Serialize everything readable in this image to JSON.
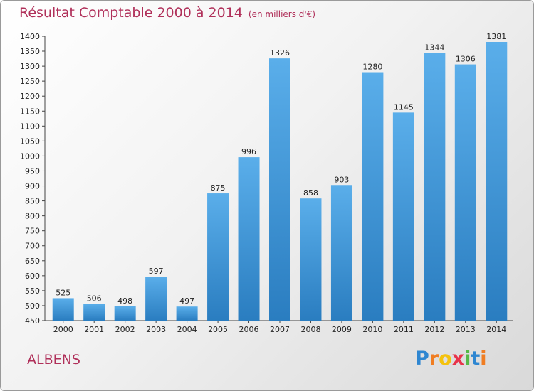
{
  "chart_data": {
    "type": "bar",
    "title": "Résultat Comptable 2000 à 2014",
    "unit": "(en milliers d'€)",
    "categories": [
      "2000",
      "2001",
      "2002",
      "2003",
      "2004",
      "2005",
      "2006",
      "2007",
      "2008",
      "2009",
      "2010",
      "2011",
      "2012",
      "2013",
      "2014"
    ],
    "values": [
      525,
      506,
      498,
      597,
      497,
      875,
      996,
      1326,
      858,
      903,
      1280,
      1145,
      1344,
      1306,
      1381
    ],
    "ylim": [
      450,
      1400
    ],
    "yticks": [
      450,
      500,
      550,
      600,
      650,
      700,
      750,
      800,
      850,
      900,
      950,
      1000,
      1050,
      1100,
      1150,
      1200,
      1250,
      1300,
      1350,
      1400
    ],
    "grid": false,
    "colors": {
      "bar_light": "#5aaeea",
      "bar_dark": "#2a7dc0",
      "title": "#b0305a"
    }
  },
  "place": "ALBENS",
  "logo": {
    "letters": [
      "P",
      "r",
      "o",
      "x",
      "i",
      "t",
      "i"
    ],
    "colors": [
      "#2e86d1",
      "#f07d22",
      "#f4c20d",
      "#e8334a",
      "#57b947",
      "#2e86d1",
      "#f07d22"
    ]
  }
}
